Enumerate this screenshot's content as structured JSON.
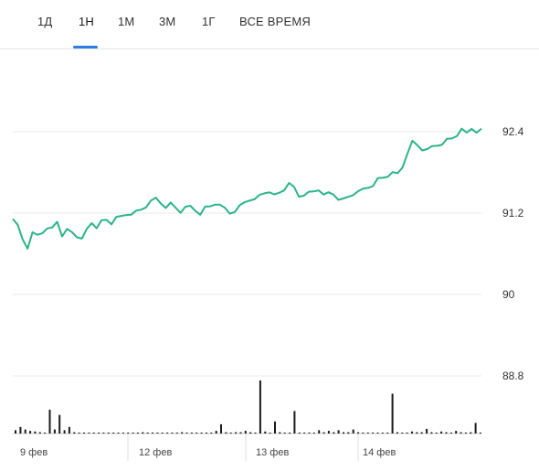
{
  "tabs": [
    {
      "label": "1Д",
      "active": false
    },
    {
      "label": "1Н",
      "active": true
    },
    {
      "label": "1М",
      "active": false
    },
    {
      "label": "3М",
      "active": false
    },
    {
      "label": "1Г",
      "active": false
    },
    {
      "label": "ВСЕ ВРЕМЯ",
      "active": false
    }
  ],
  "chart_data": {
    "type": "line",
    "line_color": "#2bb584",
    "volume_color": "#1a1a1a",
    "y_ticks": [
      92.4,
      91.2,
      90,
      88.8
    ],
    "y_tick_labels": [
      "92.4",
      "91.2",
      "90",
      "88.8"
    ],
    "ylim": [
      88.8,
      92.8
    ],
    "x_tick_labels": [
      "9 фев",
      "12 фев",
      "13 фев",
      "14 фев"
    ],
    "grid": true,
    "series": [
      {
        "values": [
          91.09,
          91.02,
          90.82,
          90.7,
          90.9,
          90.88,
          90.92,
          90.95,
          90.98,
          91.08,
          90.88,
          90.95,
          90.92,
          90.86,
          90.8,
          90.96,
          91.06,
          91.0,
          91.08,
          91.1,
          91.05,
          91.12,
          91.15,
          91.18,
          91.2,
          91.22,
          91.25,
          91.3,
          91.36,
          91.42,
          91.35,
          91.3,
          91.34,
          91.28,
          91.22,
          91.27,
          91.3,
          91.24,
          91.2,
          91.28,
          91.3,
          91.34,
          91.3,
          91.27,
          91.2,
          91.24,
          91.3,
          91.36,
          91.4,
          91.38,
          91.46,
          91.5,
          91.53,
          91.46,
          91.5,
          91.55,
          91.62,
          91.58,
          91.45,
          91.48,
          91.5,
          91.52,
          91.55,
          91.45,
          91.5,
          91.48,
          91.42,
          91.4,
          91.44,
          91.48,
          91.5,
          91.55,
          91.58,
          91.62,
          91.7,
          91.72,
          91.75,
          91.78,
          91.78,
          91.88,
          92.1,
          92.25,
          92.2,
          92.14,
          92.12,
          92.18,
          92.2,
          92.23,
          92.28,
          92.3,
          92.35,
          92.42,
          92.38,
          92.45,
          92.41,
          92.43
        ]
      }
    ],
    "volume": [
      0.5,
      1.0,
      0.6,
      0.4,
      0.3,
      0.2,
      0.1,
      3.6,
      0.6,
      2.8,
      0.5,
      1.0,
      0.2,
      0.1,
      0.1,
      0.1,
      0.1,
      0.1,
      0.1,
      0.1,
      0.1,
      0.1,
      0.1,
      0.1,
      0.1,
      0.1,
      0.2,
      0.1,
      0.1,
      0.1,
      0.1,
      0.1,
      0.1,
      0.1,
      0.2,
      0.1,
      0.1,
      0.1,
      0.1,
      0.1,
      0.1,
      0.4,
      1.4,
      0.2,
      0.1,
      0.2,
      0.2,
      0.4,
      0.2,
      0.1,
      8.0,
      0.3,
      0.1,
      1.8,
      0.2,
      0.1,
      0.1,
      3.4,
      0.1,
      0.1,
      0.1,
      0.1,
      0.5,
      0.2,
      0.4,
      0.2,
      0.5,
      0.2,
      0.2,
      0.6,
      0.2,
      0.1,
      0.1,
      0.1,
      0.1,
      0.1,
      0.1,
      6.0,
      0.2,
      0.1,
      0.1,
      0.3,
      0.2,
      0.2,
      0.7,
      0.2,
      0.1,
      0.3,
      0.2,
      0.1,
      0.4,
      0.2,
      0.1,
      0.2,
      1.6,
      0.1
    ]
  }
}
